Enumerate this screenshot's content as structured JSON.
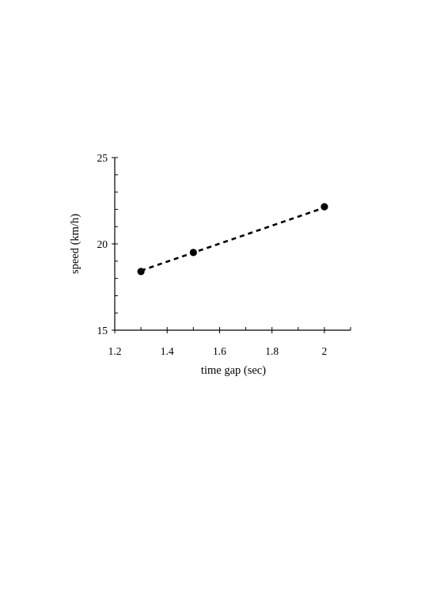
{
  "chart_data": {
    "type": "scatter",
    "title": "",
    "xlabel": "time gap (sec)",
    "ylabel": "speed (km/h)",
    "xlim": [
      1.2,
      2.1
    ],
    "ylim": [
      15,
      25
    ],
    "x_ticks": [
      "1.2",
      "1.4",
      "1.6",
      "1.8",
      "2"
    ],
    "y_ticks": [
      "15",
      "20",
      "25"
    ],
    "x_minor_step": 0.1,
    "y_minor_step": 1,
    "grid": false,
    "series": [
      {
        "x": [
          1.3,
          1.5,
          2.0
        ],
        "y": [
          18.4,
          19.5,
          22.15
        ],
        "marker": "filled-circle",
        "color": "#000000"
      }
    ],
    "trendline": {
      "style": "dashed",
      "color": "#000000",
      "x": [
        1.3,
        2.0
      ],
      "y": [
        18.45,
        22.1
      ]
    }
  }
}
